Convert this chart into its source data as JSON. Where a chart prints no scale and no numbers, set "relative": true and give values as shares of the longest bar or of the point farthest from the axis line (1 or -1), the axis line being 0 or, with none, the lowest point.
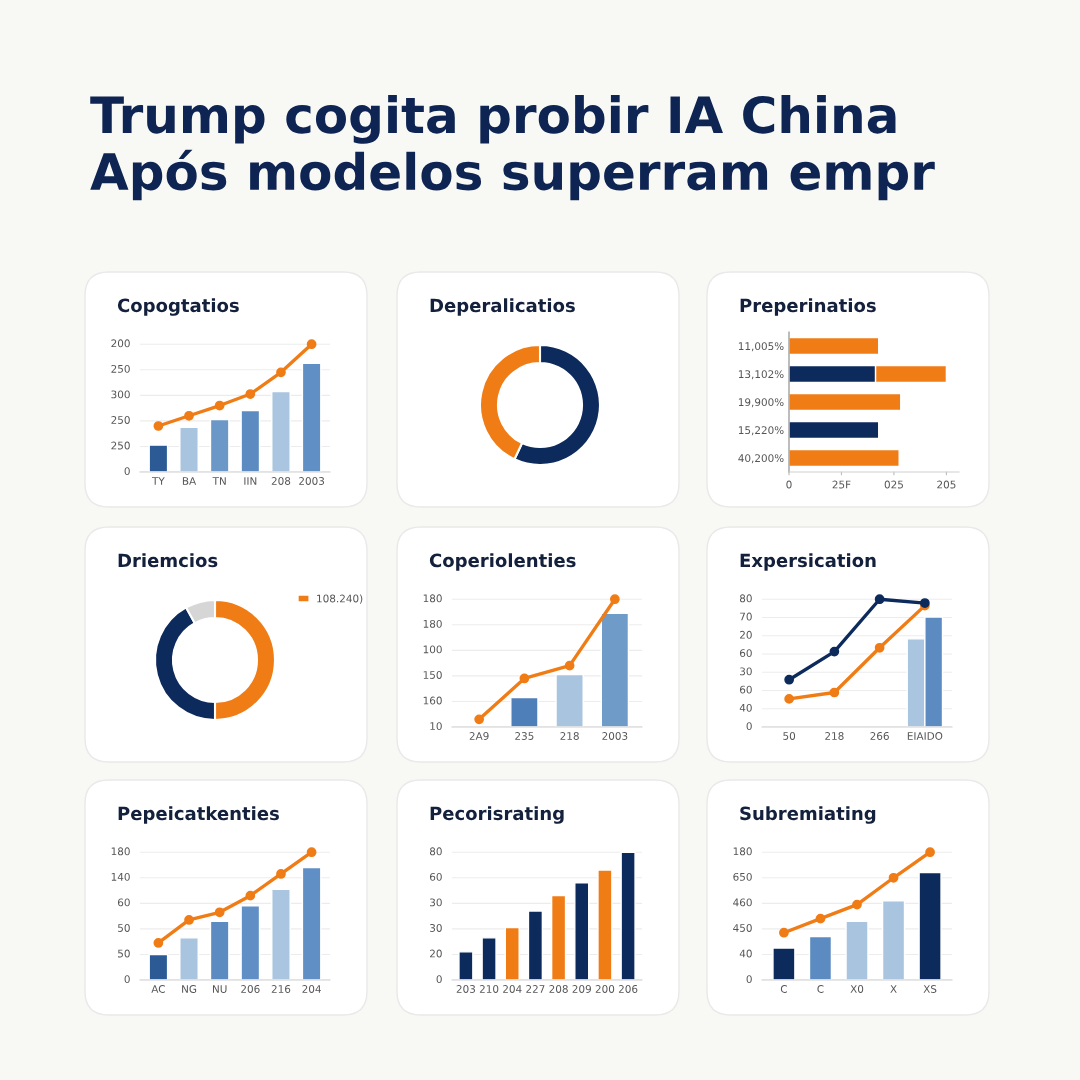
{
  "chart_data": [
    {
      "type": "other",
      "title": "Trump cogita probir IA China\nApós modelos superram empr"
    },
    {
      "type": "bar",
      "title": "Copogtatios",
      "categories": [
        "TY",
        "BA",
        "TN",
        "IIN",
        "208",
        "2003"
      ],
      "grid": "y",
      "marker": "circle",
      "relative": true,
      "annotations": [
        "0",
        "250",
        "250",
        "300",
        "250",
        "200"
      ],
      "series": [
        {
          "type": "bar",
          "colors": [
            "#2b5a94",
            "#a9c4de",
            "#6b98c6",
            "#5b8bc0",
            "#aac5e0",
            "#5f8fc4"
          ],
          "values": [
            0.21,
            0.35,
            0.41,
            0.48,
            0.63,
            0.85
          ]
        },
        {
          "type": "line",
          "color": "#f07c16",
          "values": [
            0.36,
            0.44,
            0.52,
            0.61,
            0.78,
            1
          ]
        }
      ]
    },
    {
      "type": "donut",
      "title": "Deperalicatios",
      "categories": [
        null,
        null
      ],
      "values": [
        57,
        43
      ],
      "colors": [
        "#0d2a5c",
        "#f07c16"
      ]
    },
    {
      "type": "bar",
      "title": "Preperinatios",
      "orientation": "horizontal",
      "stacked": true,
      "relative": true,
      "categories": [
        "11,005%",
        "13,102%",
        "19,900%",
        "15,220%",
        "40,200%"
      ],
      "annotations": [
        "0",
        "25F",
        "025",
        "205"
      ],
      "series": [
        {
          "color": "#0d2a5c",
          "values": [
            null,
            0.55,
            null,
            0.57,
            null
          ]
        },
        {
          "color": "#f07c16",
          "values": [
            0.57,
            0.45,
            0.71,
            null,
            0.7
          ]
        }
      ]
    },
    {
      "type": "donut",
      "title": "Driemcios",
      "categories": [
        "108.240)",
        null,
        null
      ],
      "values": [
        50,
        42,
        8
      ],
      "colors": [
        "#f07c16",
        "#0d2a5c",
        "#d6d6d6"
      ],
      "legend": "top right"
    },
    {
      "type": "bar",
      "title": "Coperiolenties",
      "categories": [
        "2A9",
        "235",
        "218",
        "2003"
      ],
      "grid": "y",
      "marker": "circle",
      "relative": true,
      "annotations": [
        "10",
        "160",
        "150",
        "100",
        "180",
        "180"
      ],
      "series": [
        {
          "type": "bar",
          "colors": [
            "#4f7fb8",
            "#4f7fb8",
            "#a9c4de",
            "#6f9bc9"
          ],
          "values": [
            null,
            0.23,
            0.41,
            0.89
          ]
        },
        {
          "type": "line",
          "color": "#f07c16",
          "values": [
            0.06,
            0.38,
            0.48,
            1
          ]
        }
      ]
    },
    {
      "type": "bar",
      "title": "Expersication",
      "categories": [
        "50",
        "218",
        "266",
        "EIAIDO"
      ],
      "grid": "y",
      "marker": "circle",
      "relative": true,
      "annotations": [
        "0",
        "40",
        "60",
        "30",
        "60",
        "20",
        "70",
        "80"
      ],
      "series": [
        {
          "type": "bar",
          "color": "#aac5e0",
          "values": [
            null,
            null,
            null,
            0.69
          ]
        },
        {
          "type": "bar",
          "color": "#5b8bc0",
          "values": [
            null,
            null,
            null,
            0.86
          ]
        },
        {
          "type": "line",
          "color": "#0d2a5c",
          "values": [
            0.37,
            0.59,
            1,
            0.97
          ]
        },
        {
          "type": "line",
          "color": "#f07c16",
          "values": [
            0.22,
            0.27,
            0.62,
            0.95
          ]
        }
      ]
    },
    {
      "type": "bar",
      "title": "Pepeicatkenties",
      "categories": [
        "AC",
        "NG",
        "NU",
        "206",
        "216",
        "204"
      ],
      "grid": "y",
      "marker": "circle",
      "relative": true,
      "annotations": [
        "0",
        "50",
        "50",
        "60",
        "140",
        "180"
      ],
      "series": [
        {
          "type": "bar",
          "colors": [
            "#2b5a94",
            "#a9c4de",
            "#5b8bc0",
            "#5f8fc4",
            "#aac5e0",
            "#5f8fc4"
          ],
          "values": [
            0.2,
            0.33,
            0.46,
            0.58,
            0.71,
            0.88
          ]
        },
        {
          "type": "line",
          "color": "#f07c16",
          "values": [
            0.29,
            0.47,
            0.53,
            0.66,
            0.83,
            1
          ]
        }
      ]
    },
    {
      "type": "bar",
      "title": "Pecorisrating",
      "categories": [
        "203",
        "210",
        "204",
        "227",
        "208",
        "209",
        "200",
        "206"
      ],
      "grid": "y",
      "relative": true,
      "annotations": [
        "0",
        "20",
        "30",
        "30",
        "60",
        "80"
      ],
      "series": [
        {
          "type": "bar",
          "colors": [
            "#0d2a5c",
            "#0d2a5c",
            "#f07c16",
            "#0d2a5c",
            "#f07c16",
            "#0d2a5c",
            "#f07c16",
            "#0d2a5c"
          ],
          "values": [
            0.22,
            0.33,
            0.41,
            0.54,
            0.66,
            0.76,
            0.86,
            1
          ]
        }
      ]
    },
    {
      "type": "bar",
      "title": "Subremiating",
      "categories": [
        "C",
        "C",
        "X0",
        "X",
        "XS"
      ],
      "grid": "y",
      "marker": "circle",
      "relative": true,
      "annotations": [
        "0",
        "40",
        "450",
        "460",
        "650",
        "180"
      ],
      "series": [
        {
          "type": "bar",
          "colors": [
            "#0d2a5c",
            "#5b8bc0",
            "#a9c4de",
            "#a9c4de",
            "#0d2a5c"
          ],
          "values": [
            0.25,
            0.34,
            0.46,
            0.62,
            0.84
          ]
        },
        {
          "type": "line",
          "color": "#f07c16",
          "values": [
            0.37,
            0.48,
            0.59,
            0.8,
            1
          ]
        }
      ]
    }
  ]
}
